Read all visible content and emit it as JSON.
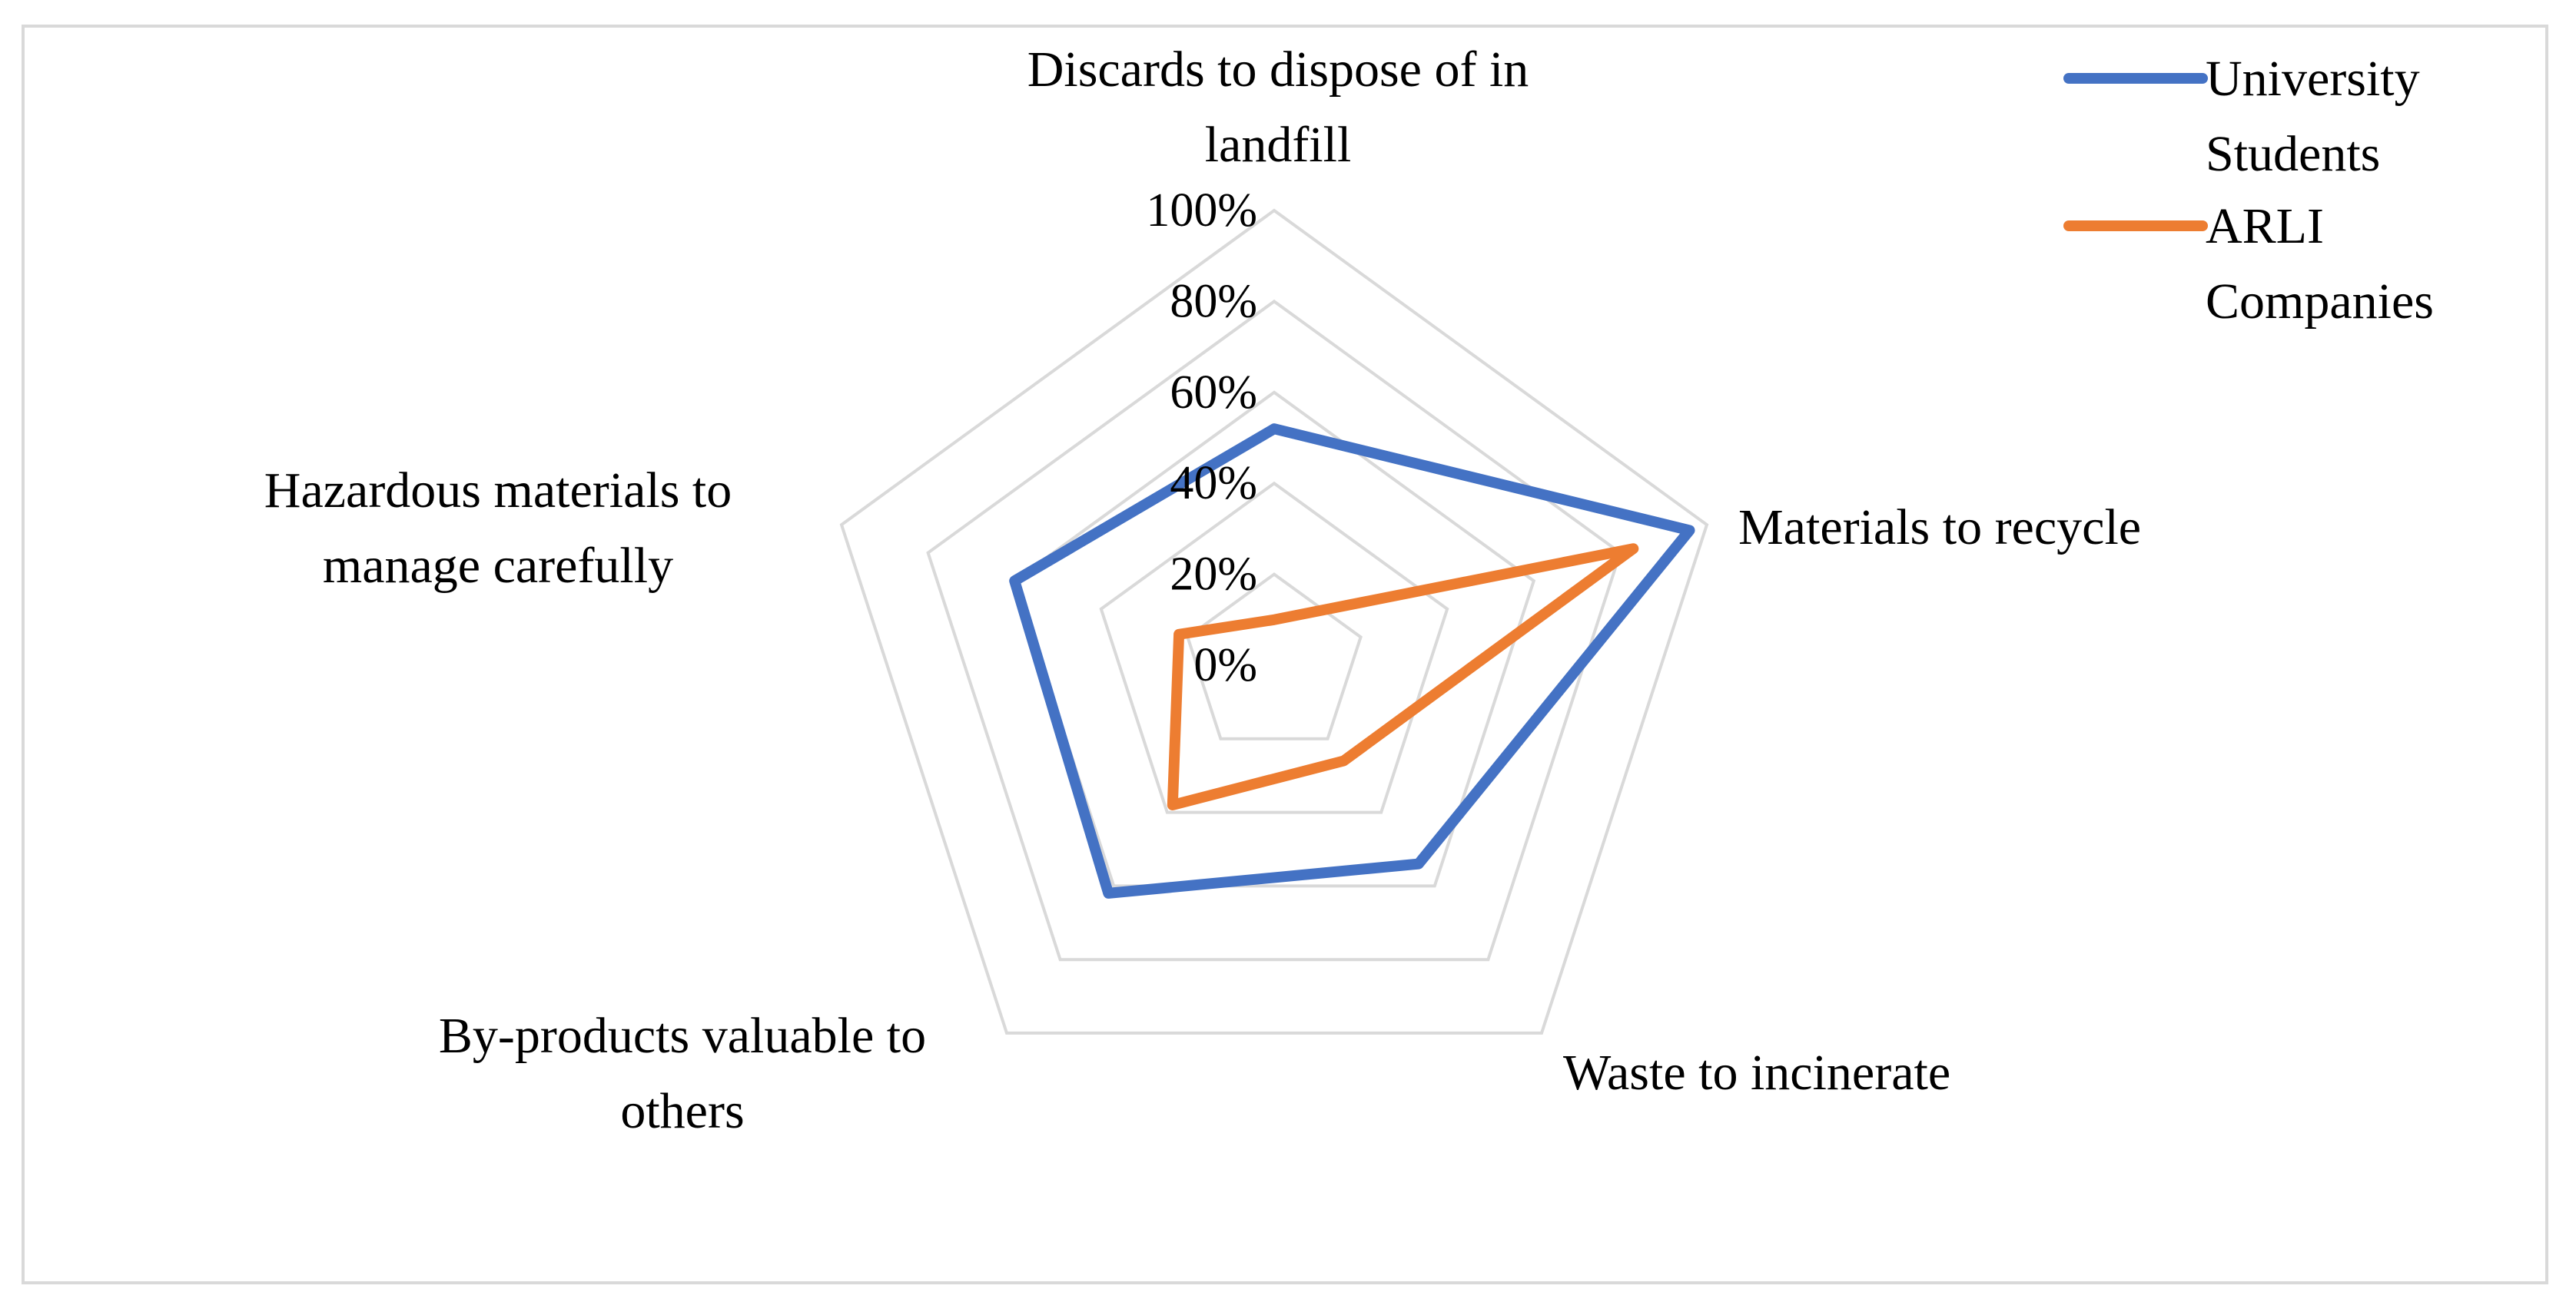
{
  "chart_data": {
    "type": "radar",
    "title": "",
    "categories": [
      "Discards to dispose of in landfill",
      "Materials to recycle",
      "Waste to incinerate",
      "By-products valuable to others",
      "Hazardous materials to manage carefully"
    ],
    "category_lines": [
      [
        "Discards to dispose of in",
        "landfill"
      ],
      [
        "Materials to recycle"
      ],
      [
        "Waste to incinerate"
      ],
      [
        "By-products valuable to",
        "others"
      ],
      [
        "Hazardous materials to",
        "manage carefully"
      ]
    ],
    "rlim": [
      0,
      100
    ],
    "ticks": [
      0,
      20,
      40,
      60,
      80,
      100
    ],
    "tick_labels": [
      "0%",
      "20%",
      "40%",
      "60%",
      "80%",
      "100%"
    ],
    "series": [
      {
        "name": "University Students",
        "legend_lines": [
          "University",
          "Students"
        ],
        "color": "#4472c4",
        "values": [
          52,
          96,
          54,
          62,
          60
        ]
      },
      {
        "name": "ARLI Companies",
        "legend_lines": [
          "ARLI",
          "Companies"
        ],
        "color": "#ed7d31",
        "values": [
          10,
          83,
          26,
          38,
          22
        ]
      }
    ],
    "grid": true,
    "grid_color": "#d9d9d9",
    "legend": "top-right"
  }
}
